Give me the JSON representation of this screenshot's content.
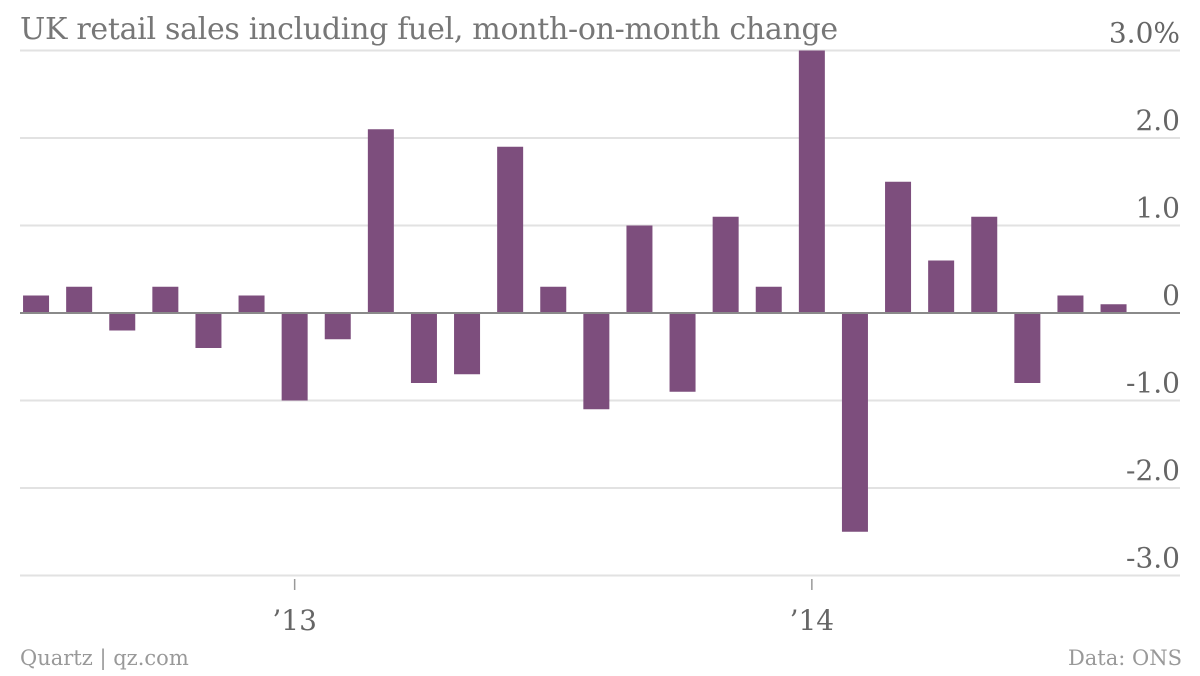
{
  "chart_data": {
    "type": "bar",
    "title": "UK retail sales including fuel, month-on-month change",
    "xlabel": "",
    "ylabel": "",
    "ylim": [
      -3.0,
      3.0
    ],
    "y_ticks": [
      {
        "value": 3.0,
        "label": "3.0%"
      },
      {
        "value": 2.0,
        "label": "2.0"
      },
      {
        "value": 1.0,
        "label": "1.0"
      },
      {
        "value": 0,
        "label": "0"
      },
      {
        "value": -1.0,
        "label": "-1.0"
      },
      {
        "value": -2.0,
        "label": "-2.0"
      },
      {
        "value": -3.0,
        "label": "-3.0"
      }
    ],
    "x_ticks": [
      {
        "category": "2013-01",
        "label": "’13"
      },
      {
        "category": "2014-01",
        "label": "’14"
      }
    ],
    "categories": [
      "2012-07",
      "2012-08",
      "2012-09",
      "2012-10",
      "2012-11",
      "2012-12",
      "2013-01",
      "2013-02",
      "2013-03",
      "2013-04",
      "2013-05",
      "2013-06",
      "2013-07",
      "2013-08",
      "2013-09",
      "2013-10",
      "2013-11",
      "2013-12",
      "2014-01",
      "2014-02",
      "2014-03",
      "2014-04",
      "2014-05",
      "2014-06",
      "2014-07",
      "2014-08",
      "2014-09"
    ],
    "values": [
      0.2,
      0.3,
      -0.2,
      0.3,
      -0.4,
      0.2,
      -1.0,
      -0.3,
      2.1,
      -0.8,
      -0.7,
      1.9,
      0.3,
      -1.1,
      1.0,
      -0.9,
      1.1,
      0.3,
      3.0,
      -2.5,
      1.5,
      0.6,
      1.1,
      -0.8,
      0.2,
      0.1,
      null
    ],
    "grid": true,
    "bar_color": "#7d4e7d",
    "source": "Data: ONS",
    "credit": "Quartz | qz.com"
  }
}
